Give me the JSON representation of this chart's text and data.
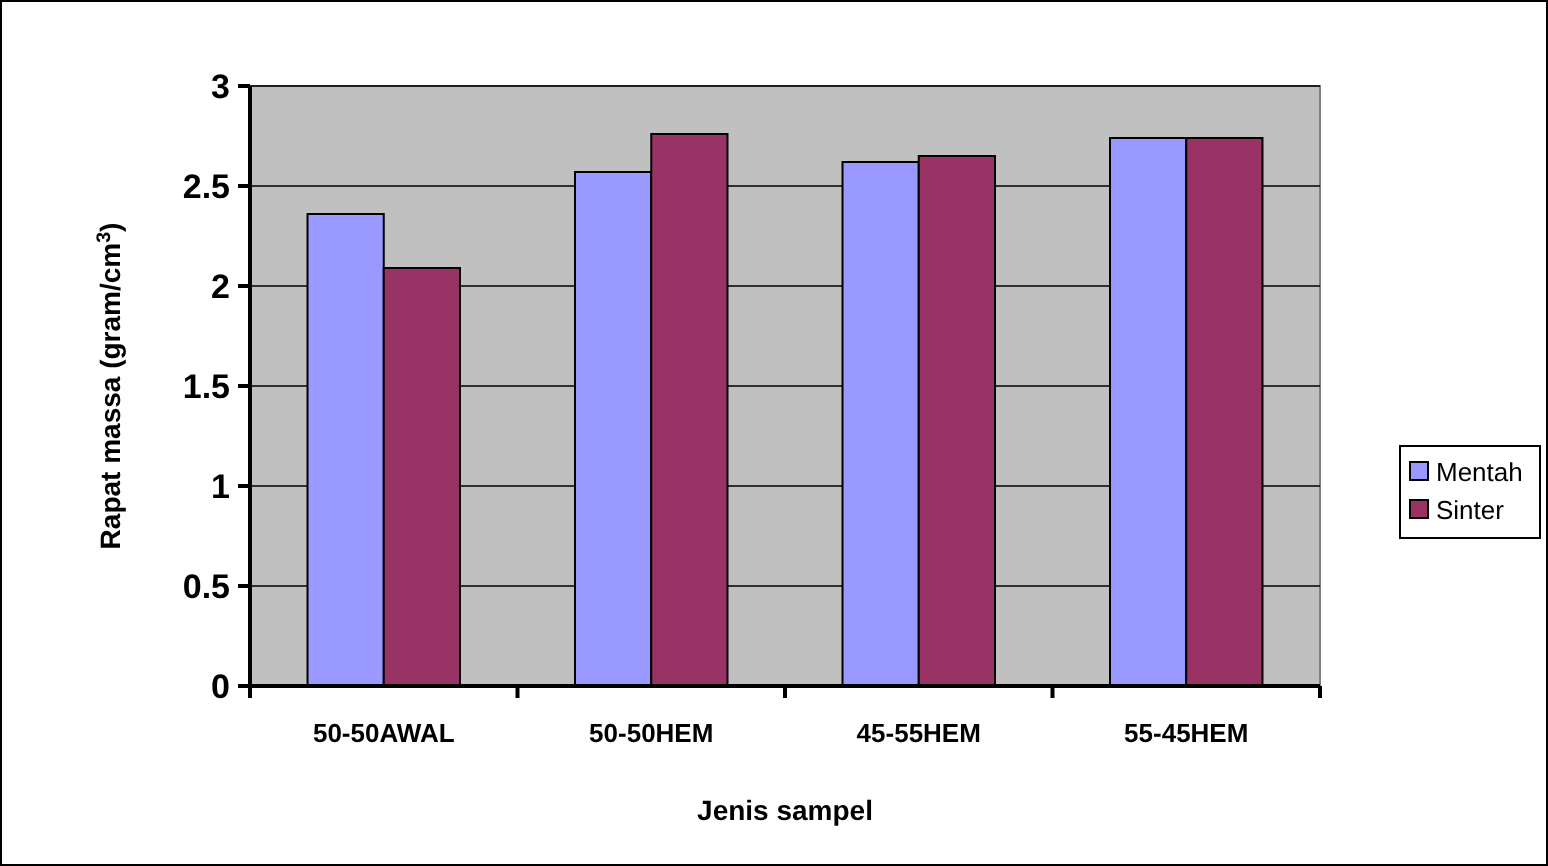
{
  "chart_data": {
    "type": "bar",
    "xlabel": "Jenis sampel",
    "ylabel": "Rapat massa (gram/cm$^{3}$)",
    "categories": [
      "50-50AWAL",
      "50-50HEM",
      "45-55HEM",
      "55-45HEM"
    ],
    "series": [
      {
        "name": "Mentah",
        "color": "#9999ff",
        "values": [
          2.36,
          2.57,
          2.62,
          2.74
        ]
      },
      {
        "name": "Sinter",
        "color": "#993366",
        "values": [
          2.09,
          2.76,
          2.65,
          2.74
        ]
      }
    ],
    "ylim": [
      0,
      3
    ],
    "yticks": [
      0,
      0.5,
      1,
      1.5,
      2,
      2.5,
      3
    ],
    "grid": "y",
    "legend": "right"
  }
}
